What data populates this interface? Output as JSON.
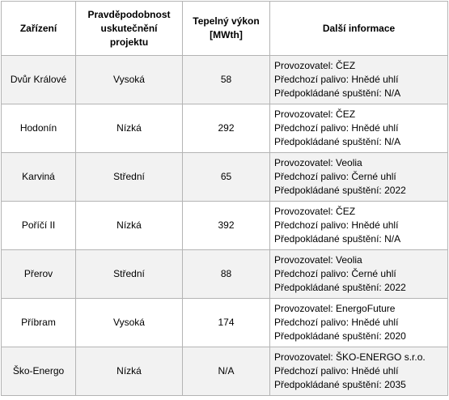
{
  "table": {
    "header": [
      [
        "Zařízení"
      ],
      [
        "Pravděpodobnost",
        "uskutečnění",
        "projektu"
      ],
      [
        "Tepelný výkon",
        "[MWth]"
      ],
      [
        "Další informace"
      ]
    ],
    "rows": [
      [
        "Dvůr Králové",
        "Vysoká",
        "58",
        [
          "Provozovatel: ČEZ",
          "Předchozí palivo: Hnědé uhlí",
          "Předpokládané spuštění: N/A"
        ]
      ],
      [
        "Hodonín",
        "Nízká",
        "292",
        [
          "Provozovatel: ČEZ",
          "Předchozí palivo: Hnědé uhlí",
          "Předpokládané spuštění: N/A"
        ]
      ],
      [
        "Karviná",
        "Střední",
        "65",
        [
          "Provozovatel: Veolia",
          "Předchozí palivo: Černé uhlí",
          "Předpokládané spuštění: 2022"
        ]
      ],
      [
        "Poříčí II",
        "Nízká",
        "392",
        [
          "Provozovatel: ČEZ",
          "Předchozí palivo: Hnědé uhlí",
          "Předpokládané spuštění: N/A"
        ]
      ],
      [
        "Přerov",
        "Střední",
        "88",
        [
          "Provozovatel: Veolia",
          "Předchozí palivo: Černé uhlí",
          "Předpokládané spuštění: 2022"
        ]
      ],
      [
        "Příbram",
        "Vysoká",
        "174",
        [
          "Provozovatel: EnergoFuture",
          "Předchozí palivo: Hnědé uhlí",
          "Předpokládané spuštění: 2020"
        ]
      ],
      [
        "Ško-Energo",
        "Nízká",
        "N/A",
        [
          "Provozovatel: ŠKO-ENERGO s.r.o.",
          "Předchozí palivo: Hnědé uhlí",
          "Předpokládané spuštění: 2035"
        ]
      ]
    ]
  }
}
